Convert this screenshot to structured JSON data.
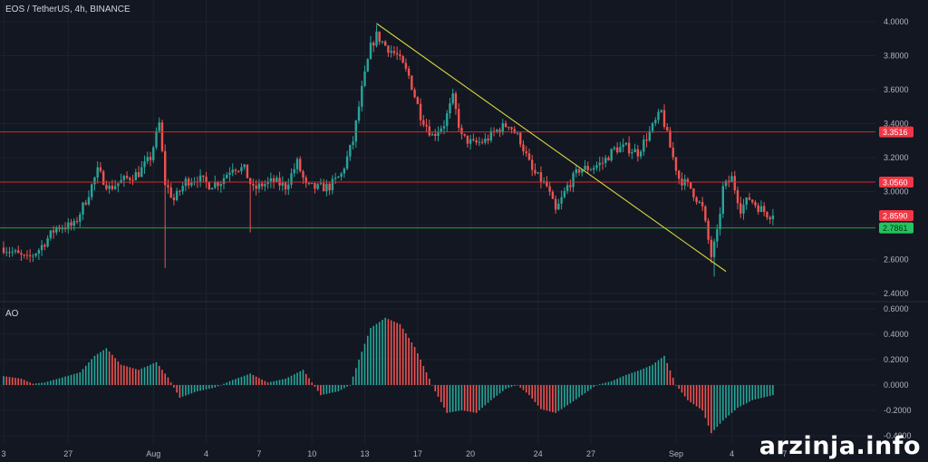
{
  "header": {
    "title": "EOS / TetherUS, 4h, BINANCE"
  },
  "watermark": "arzinja.info",
  "colors": {
    "background": "#131722",
    "grid": "#1e222d",
    "up": "#26a69a",
    "down": "#ef5350",
    "resistance": "#f23645",
    "support": "#089981",
    "trendline": "#d4d43a",
    "price_badge": "#f23645",
    "support_badge": "#22ab94"
  },
  "chart_data": [
    {
      "type": "candlestick",
      "title": "EOS / TetherUS, 4h, BINANCE",
      "ylim": [
        2.4,
        4.0
      ],
      "y_ticks": [
        "2.4000",
        "2.6000",
        "2.8000",
        "3.0000",
        "3.2000",
        "3.4000",
        "3.6000",
        "3.8000",
        "4.0000"
      ],
      "x_ticks": [
        "3",
        "27",
        "Aug",
        "4",
        "7",
        "10",
        "13",
        "17",
        "20",
        "24",
        "27",
        "Sep",
        "4",
        "7"
      ],
      "current_price": "2.8590",
      "horizontal_levels": [
        {
          "label": "3.3516",
          "value": 3.3516,
          "kind": "resistance"
        },
        {
          "label": "3.0560",
          "value": 3.056,
          "kind": "resistance"
        },
        {
          "label": "2.7861",
          "value": 2.7861,
          "kind": "support"
        }
      ],
      "trendline": {
        "start": {
          "x_index": 127,
          "y": 3.99
        },
        "end": {
          "x_index": 246,
          "y": 2.53
        }
      },
      "close_series": [
        {
          "x_index": 0,
          "y": 2.67
        },
        {
          "x_index": 8,
          "y": 2.6
        },
        {
          "x_index": 12,
          "y": 2.66
        },
        {
          "x_index": 18,
          "y": 2.79
        },
        {
          "x_index": 24,
          "y": 2.8
        },
        {
          "x_index": 28,
          "y": 2.95
        },
        {
          "x_index": 32,
          "y": 3.12
        },
        {
          "x_index": 36,
          "y": 3.02
        },
        {
          "x_index": 40,
          "y": 3.06
        },
        {
          "x_index": 46,
          "y": 3.11
        },
        {
          "x_index": 50,
          "y": 3.2
        },
        {
          "x_index": 53,
          "y": 3.4
        },
        {
          "x_index": 55,
          "y": 3.05
        },
        {
          "x_index": 58,
          "y": 2.95
        },
        {
          "x_index": 62,
          "y": 3.06
        },
        {
          "x_index": 66,
          "y": 3.08
        },
        {
          "x_index": 70,
          "y": 3.04
        },
        {
          "x_index": 74,
          "y": 3.06
        },
        {
          "x_index": 78,
          "y": 3.15
        },
        {
          "x_index": 82,
          "y": 3.13
        },
        {
          "x_index": 85,
          "y": 3.01
        },
        {
          "x_index": 88,
          "y": 3.04
        },
        {
          "x_index": 92,
          "y": 3.06
        },
        {
          "x_index": 96,
          "y": 3.03
        },
        {
          "x_index": 100,
          "y": 3.17
        },
        {
          "x_index": 103,
          "y": 3.03
        },
        {
          "x_index": 107,
          "y": 3.02
        },
        {
          "x_index": 111,
          "y": 3.03
        },
        {
          "x_index": 115,
          "y": 3.1
        },
        {
          "x_index": 119,
          "y": 3.3
        },
        {
          "x_index": 122,
          "y": 3.6
        },
        {
          "x_index": 125,
          "y": 3.85
        },
        {
          "x_index": 127,
          "y": 3.92
        },
        {
          "x_index": 130,
          "y": 3.86
        },
        {
          "x_index": 134,
          "y": 3.8
        },
        {
          "x_index": 138,
          "y": 3.68
        },
        {
          "x_index": 142,
          "y": 3.45
        },
        {
          "x_index": 146,
          "y": 3.33
        },
        {
          "x_index": 150,
          "y": 3.4
        },
        {
          "x_index": 153,
          "y": 3.55
        },
        {
          "x_index": 156,
          "y": 3.32
        },
        {
          "x_index": 160,
          "y": 3.28
        },
        {
          "x_index": 164,
          "y": 3.3
        },
        {
          "x_index": 168,
          "y": 3.36
        },
        {
          "x_index": 172,
          "y": 3.4
        },
        {
          "x_index": 176,
          "y": 3.3
        },
        {
          "x_index": 180,
          "y": 3.12
        },
        {
          "x_index": 185,
          "y": 3.03
        },
        {
          "x_index": 188,
          "y": 2.88
        },
        {
          "x_index": 192,
          "y": 3.03
        },
        {
          "x_index": 196,
          "y": 3.13
        },
        {
          "x_index": 200,
          "y": 3.14
        },
        {
          "x_index": 204,
          "y": 3.17
        },
        {
          "x_index": 208,
          "y": 3.25
        },
        {
          "x_index": 212,
          "y": 3.26
        },
        {
          "x_index": 216,
          "y": 3.23
        },
        {
          "x_index": 220,
          "y": 3.35
        },
        {
          "x_index": 224,
          "y": 3.47
        },
        {
          "x_index": 227,
          "y": 3.26
        },
        {
          "x_index": 230,
          "y": 3.08
        },
        {
          "x_index": 234,
          "y": 3.02
        },
        {
          "x_index": 238,
          "y": 2.9
        },
        {
          "x_index": 241,
          "y": 2.62
        },
        {
          "x_index": 243,
          "y": 2.75
        },
        {
          "x_index": 245,
          "y": 3.02
        },
        {
          "x_index": 248,
          "y": 3.08
        },
        {
          "x_index": 251,
          "y": 2.9
        },
        {
          "x_index": 254,
          "y": 2.96
        },
        {
          "x_index": 257,
          "y": 2.91
        },
        {
          "x_index": 260,
          "y": 2.87
        },
        {
          "x_index": 262,
          "y": 2.859
        }
      ],
      "spikes": [
        {
          "x_index": 55,
          "y": 2.55
        },
        {
          "x_index": 84,
          "y": 2.76
        },
        {
          "x_index": 242,
          "y": 2.5
        }
      ]
    },
    {
      "type": "bar",
      "title": "AO",
      "ylim": [
        -0.4,
        0.6
      ],
      "y_ticks": [
        "-0.4000",
        "-0.2000",
        "0.0000",
        "0.2000",
        "0.4000",
        "0.6000"
      ],
      "ao_keypoints": [
        {
          "x_index": 0,
          "y": 0.07
        },
        {
          "x_index": 6,
          "y": 0.05
        },
        {
          "x_index": 10,
          "y": 0.01
        },
        {
          "x_index": 14,
          "y": 0.02
        },
        {
          "x_index": 20,
          "y": 0.06
        },
        {
          "x_index": 26,
          "y": 0.1
        },
        {
          "x_index": 31,
          "y": 0.23
        },
        {
          "x_index": 35,
          "y": 0.29
        },
        {
          "x_index": 40,
          "y": 0.16
        },
        {
          "x_index": 46,
          "y": 0.12
        },
        {
          "x_index": 52,
          "y": 0.18
        },
        {
          "x_index": 56,
          "y": 0.06
        },
        {
          "x_index": 60,
          "y": -0.1
        },
        {
          "x_index": 66,
          "y": -0.05
        },
        {
          "x_index": 72,
          "y": -0.02
        },
        {
          "x_index": 78,
          "y": 0.04
        },
        {
          "x_index": 84,
          "y": 0.09
        },
        {
          "x_index": 90,
          "y": 0.02
        },
        {
          "x_index": 96,
          "y": 0.05
        },
        {
          "x_index": 102,
          "y": 0.12
        },
        {
          "x_index": 108,
          "y": -0.08
        },
        {
          "x_index": 114,
          "y": -0.05
        },
        {
          "x_index": 118,
          "y": 0.0
        },
        {
          "x_index": 121,
          "y": 0.2
        },
        {
          "x_index": 125,
          "y": 0.45
        },
        {
          "x_index": 130,
          "y": 0.53
        },
        {
          "x_index": 135,
          "y": 0.48
        },
        {
          "x_index": 140,
          "y": 0.3
        },
        {
          "x_index": 144,
          "y": 0.1
        },
        {
          "x_index": 147,
          "y": -0.05
        },
        {
          "x_index": 151,
          "y": -0.22
        },
        {
          "x_index": 156,
          "y": -0.2
        },
        {
          "x_index": 161,
          "y": -0.22
        },
        {
          "x_index": 166,
          "y": -0.12
        },
        {
          "x_index": 171,
          "y": -0.03
        },
        {
          "x_index": 175,
          "y": 0.0
        },
        {
          "x_index": 179,
          "y": -0.08
        },
        {
          "x_index": 183,
          "y": -0.19
        },
        {
          "x_index": 188,
          "y": -0.22
        },
        {
          "x_index": 192,
          "y": -0.16
        },
        {
          "x_index": 197,
          "y": -0.08
        },
        {
          "x_index": 202,
          "y": 0.0
        },
        {
          "x_index": 207,
          "y": 0.03
        },
        {
          "x_index": 212,
          "y": 0.08
        },
        {
          "x_index": 217,
          "y": 0.12
        },
        {
          "x_index": 221,
          "y": 0.16
        },
        {
          "x_index": 225,
          "y": 0.23
        },
        {
          "x_index": 229,
          "y": 0.0
        },
        {
          "x_index": 233,
          "y": -0.12
        },
        {
          "x_index": 238,
          "y": -0.2
        },
        {
          "x_index": 241,
          "y": -0.38
        },
        {
          "x_index": 245,
          "y": -0.28
        },
        {
          "x_index": 250,
          "y": -0.18
        },
        {
          "x_index": 255,
          "y": -0.12
        },
        {
          "x_index": 262,
          "y": -0.08
        }
      ]
    }
  ]
}
